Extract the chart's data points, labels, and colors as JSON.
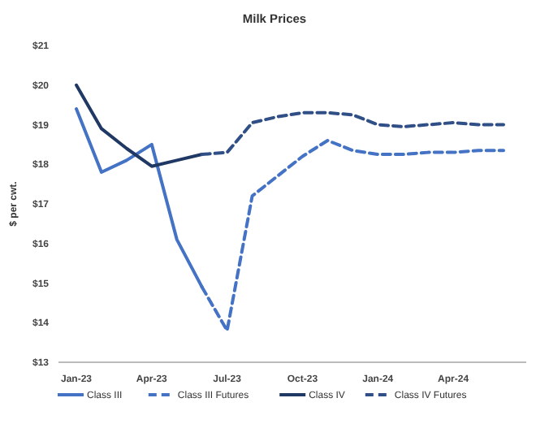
{
  "chart_data": {
    "type": "line",
    "title": "Milk Prices",
    "ylabel": "$ per cwt.",
    "categories": [
      "Jan-23",
      null,
      null,
      "Apr-23",
      null,
      null,
      "Jul-23",
      null,
      null,
      "Oct-23",
      null,
      null,
      "Jan-24",
      null,
      null,
      "Apr-24",
      null,
      null
    ],
    "series": [
      {
        "name": "Class III",
        "color": "#4472c4",
        "line_style": "solid",
        "values": [
          19.4,
          17.8,
          18.1,
          18.5,
          16.1,
          14.9,
          null,
          null,
          null,
          null,
          null,
          null,
          null,
          null,
          null,
          null,
          null,
          null
        ]
      },
      {
        "name": "Class III Futures",
        "color": "#4472c4",
        "line_style": "dashed",
        "values": [
          null,
          null,
          null,
          null,
          null,
          14.9,
          13.8,
          17.2,
          17.7,
          18.2,
          18.6,
          18.35,
          18.25,
          18.25,
          18.3,
          18.3,
          18.35,
          18.35
        ]
      },
      {
        "name": "Class IV",
        "color": "#203864",
        "line_style": "solid",
        "values": [
          20.0,
          18.9,
          18.4,
          17.95,
          18.1,
          18.25,
          null,
          null,
          null,
          null,
          null,
          null,
          null,
          null,
          null,
          null,
          null,
          null
        ]
      },
      {
        "name": "Class IV Futures",
        "color": "#2f4f86",
        "line_style": "dashed",
        "values": [
          null,
          null,
          null,
          null,
          null,
          18.25,
          18.3,
          19.05,
          19.2,
          19.3,
          19.3,
          19.25,
          19.0,
          18.95,
          19.0,
          19.05,
          19.0,
          19.0
        ]
      }
    ],
    "ylim": [
      13,
      21
    ],
    "yticks": [
      {
        "value": 13,
        "label": "$13"
      },
      {
        "value": 14,
        "label": "$14"
      },
      {
        "value": 15,
        "label": "$15"
      },
      {
        "value": 16,
        "label": "$16"
      },
      {
        "value": 17,
        "label": "$17"
      },
      {
        "value": 18,
        "label": "$18"
      },
      {
        "value": 19,
        "label": "$19"
      },
      {
        "value": 20,
        "label": "$20"
      },
      {
        "value": 21,
        "label": "$21"
      }
    ],
    "grid": false,
    "legend": "bottom"
  }
}
